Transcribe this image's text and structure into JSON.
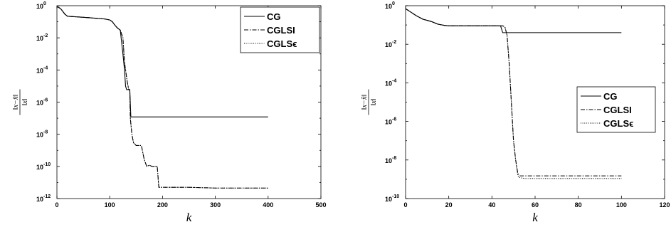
{
  "chart_data": [
    {
      "type": "line",
      "title": "",
      "xlabel": "k",
      "ylabel": "‖x−x̂‖ / ‖x‖",
      "ylabel_num": "‖x−x̂‖",
      "ylabel_den": "‖x‖",
      "xlim": [
        0,
        500
      ],
      "ylim": [
        1e-12,
        1
      ],
      "yscale": "log",
      "xticks": [
        0,
        100,
        200,
        300,
        400,
        500
      ],
      "xtick_labels": [
        "0",
        "100",
        "200",
        "300",
        "400",
        "500"
      ],
      "yticks": [
        1e-12,
        1e-10,
        1e-08,
        1e-06,
        0.0001,
        0.01,
        1
      ],
      "ytick_labels": [
        {
          "base": "10",
          "exp": "-12"
        },
        {
          "base": "10",
          "exp": "-10"
        },
        {
          "base": "10",
          "exp": "-8"
        },
        {
          "base": "10",
          "exp": "-6"
        },
        {
          "base": "10",
          "exp": "-4"
        },
        {
          "base": "10",
          "exp": "-2"
        },
        {
          "base": "10",
          "exp": "0"
        }
      ],
      "grid": false,
      "legend_position": "top-right",
      "series": [
        {
          "name": "CG",
          "style": "solid",
          "color": "#000000",
          "x": [
            0,
            3,
            8,
            15,
            20,
            40,
            60,
            90,
            100,
            105,
            110,
            115,
            120,
            125,
            128,
            130,
            132,
            135,
            138,
            140,
            400
          ],
          "y": [
            0.85,
            0.8,
            0.6,
            0.3,
            0.22,
            0.2,
            0.18,
            0.15,
            0.13,
            0.1,
            0.06,
            0.04,
            0.03,
            0.001,
            0.0001,
            1e-05,
            6e-06,
            6e-06,
            6e-06,
            1.2e-07,
            1.2e-07
          ]
        },
        {
          "name": "CGLSI",
          "style": "dashdot",
          "color": "#000000",
          "x": [
            0,
            3,
            8,
            15,
            20,
            40,
            60,
            90,
            100,
            105,
            110,
            115,
            120,
            125,
            128,
            130,
            133,
            136,
            138,
            139,
            142,
            145,
            150,
            160,
            165,
            170,
            175,
            180,
            190,
            193,
            200,
            250,
            300,
            400
          ],
          "y": [
            0.85,
            0.8,
            0.6,
            0.3,
            0.22,
            0.2,
            0.18,
            0.15,
            0.13,
            0.1,
            0.06,
            0.04,
            0.03,
            0.01,
            0.0003,
            0.0001,
            2e-05,
            6e-06,
            6e-06,
            1e-07,
            1e-08,
            3e-09,
            2e-09,
            2e-09,
            3e-10,
            1e-10,
            1.2e-10,
            1e-10,
            1e-10,
            5e-12,
            5e-12,
            5e-12,
            4.5e-12,
            4.5e-12
          ]
        },
        {
          "name": "CGLSϵ",
          "style": "dotted",
          "color": "#000000",
          "x": [
            0,
            3,
            8,
            15,
            20,
            40,
            60,
            90,
            100,
            105,
            110,
            115,
            120,
            125,
            128,
            130,
            133,
            136,
            138,
            139,
            142,
            145,
            150,
            160,
            165,
            170,
            175,
            180,
            190,
            193,
            200,
            250,
            300,
            400
          ],
          "y": [
            0.85,
            0.8,
            0.6,
            0.3,
            0.22,
            0.2,
            0.18,
            0.15,
            0.13,
            0.1,
            0.06,
            0.04,
            0.03,
            0.01,
            0.0003,
            0.0001,
            2e-05,
            6e-06,
            6e-06,
            1e-07,
            1e-08,
            3e-09,
            2e-09,
            2e-09,
            3e-10,
            1e-10,
            1.2e-10,
            1e-10,
            1e-10,
            5e-12,
            5e-12,
            5e-12,
            4.5e-12,
            4.5e-12
          ]
        }
      ]
    },
    {
      "type": "line",
      "title": "",
      "xlabel": "k",
      "ylabel": "‖x−x̂‖ / ‖x‖",
      "ylabel_num": "‖x−x̂‖",
      "ylabel_den": "‖x‖",
      "xlim": [
        0,
        120
      ],
      "ylim": [
        1e-10,
        1
      ],
      "yscale": "log",
      "xticks": [
        0,
        20,
        40,
        60,
        80,
        100,
        120
      ],
      "xtick_labels": [
        "0",
        "20",
        "40",
        "60",
        "80",
        "100",
        "120"
      ],
      "yticks": [
        1e-10,
        1e-08,
        1e-06,
        0.0001,
        0.01,
        1
      ],
      "ytick_labels": [
        {
          "base": "10",
          "exp": "-10"
        },
        {
          "base": "10",
          "exp": "-8"
        },
        {
          "base": "10",
          "exp": "-6"
        },
        {
          "base": "10",
          "exp": "-4"
        },
        {
          "base": "10",
          "exp": "-2"
        },
        {
          "base": "10",
          "exp": "0"
        }
      ],
      "grid": false,
      "legend_position": "middle-right",
      "series": [
        {
          "name": "CG",
          "style": "solid",
          "color": "#000000",
          "x": [
            0,
            2,
            5,
            8,
            12,
            15,
            18,
            20,
            25,
            30,
            35,
            40,
            44,
            45,
            100
          ],
          "y": [
            0.7,
            0.5,
            0.3,
            0.2,
            0.15,
            0.11,
            0.095,
            0.09,
            0.09,
            0.09,
            0.09,
            0.09,
            0.09,
            0.04,
            0.04
          ]
        },
        {
          "name": "CGLSI",
          "style": "dashdot",
          "color": "#000000",
          "x": [
            0,
            2,
            5,
            8,
            12,
            15,
            18,
            20,
            25,
            30,
            35,
            40,
            45,
            46,
            47,
            48,
            49,
            50,
            51,
            52,
            53,
            55,
            60,
            70,
            80,
            90,
            100
          ],
          "y": [
            0.7,
            0.5,
            0.3,
            0.2,
            0.15,
            0.11,
            0.095,
            0.09,
            0.09,
            0.09,
            0.09,
            0.09,
            0.09,
            0.08,
            0.03,
            0.001,
            1e-05,
            1e-07,
            1e-08,
            2e-09,
            1.5e-09,
            1.5e-09,
            1.5e-09,
            1.5e-09,
            1.5e-09,
            1.5e-09,
            1.5e-09
          ]
        },
        {
          "name": "CGLSϵ",
          "style": "dotted",
          "color": "#000000",
          "x": [
            0,
            2,
            5,
            8,
            12,
            15,
            18,
            20,
            25,
            30,
            35,
            40,
            45,
            46,
            47,
            48,
            49,
            50,
            51,
            52,
            53,
            55,
            60,
            70,
            80,
            90,
            100
          ],
          "y": [
            0.7,
            0.5,
            0.3,
            0.2,
            0.15,
            0.11,
            0.095,
            0.09,
            0.09,
            0.09,
            0.09,
            0.09,
            0.09,
            0.08,
            0.03,
            0.001,
            1e-05,
            1e-07,
            1e-08,
            1.5e-09,
            1.2e-09,
            1.1e-09,
            1.1e-09,
            1.1e-09,
            1.1e-09,
            1.1e-09,
            1.1e-09
          ]
        }
      ]
    }
  ]
}
